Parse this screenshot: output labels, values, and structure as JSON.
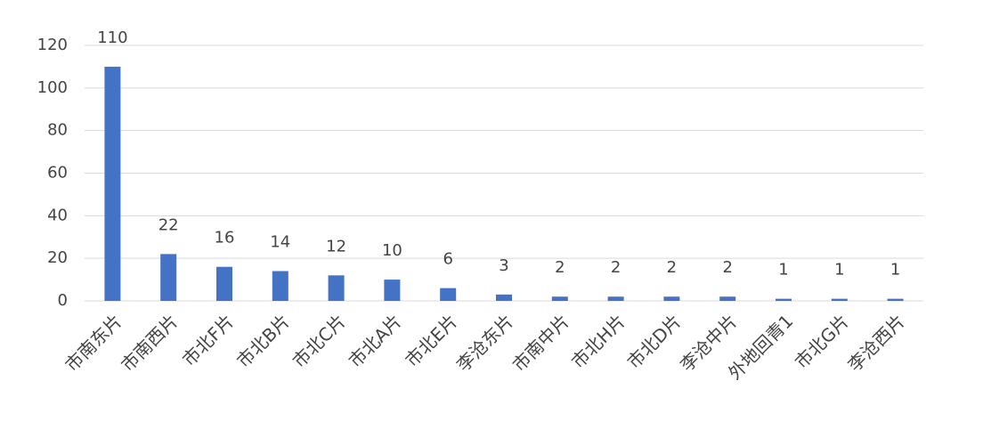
{
  "chart_data": {
    "type": "bar",
    "categories": [
      "市南东片",
      "市南西片",
      "市北F片",
      "市北B片",
      "市北C片",
      "市北A片",
      "市北E片",
      "李沧东片",
      "市南中片",
      "市北H片",
      "市北D片",
      "李沧中片",
      "外地回青1",
      "市北G片",
      "李沧西片"
    ],
    "values": [
      110,
      22,
      16,
      14,
      12,
      10,
      6,
      3,
      2,
      2,
      2,
      2,
      1,
      1,
      1
    ],
    "color": "#4472c4",
    "ylim": [
      0,
      120
    ],
    "yticks": [
      0,
      20,
      40,
      60,
      80,
      100,
      120
    ],
    "grid": true
  }
}
